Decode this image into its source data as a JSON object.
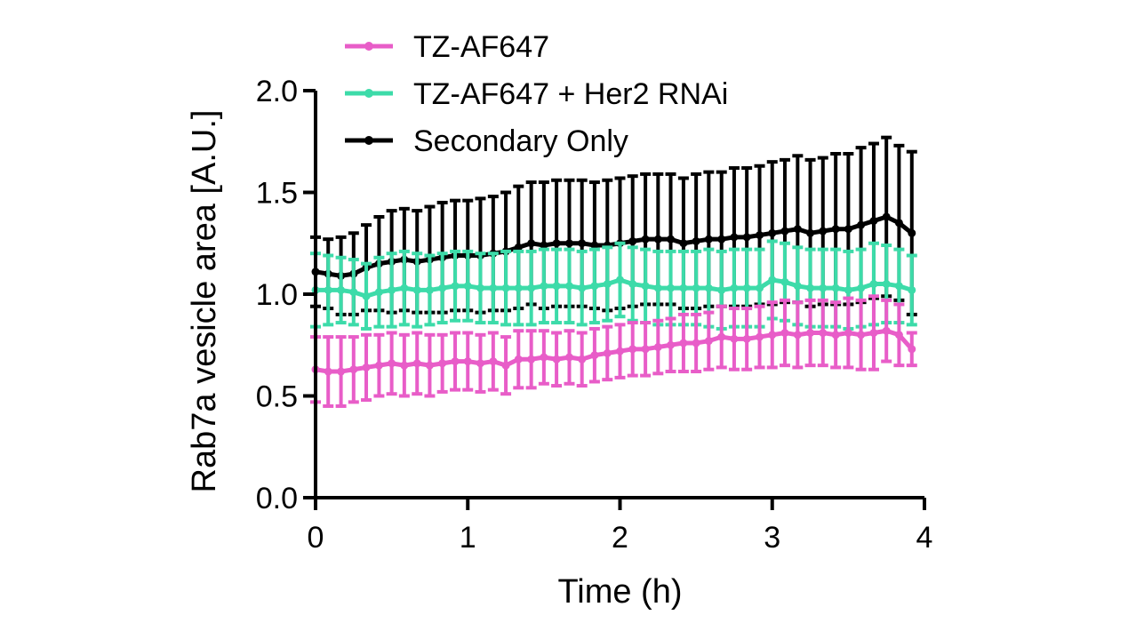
{
  "chart_data": {
    "type": "line",
    "title": "",
    "xlabel": "Time (h)",
    "ylabel": "Rab7a vesicle area [A.U.]",
    "xlim": [
      0,
      4
    ],
    "ylim": [
      0.0,
      2.0
    ],
    "xticks": [
      0,
      1,
      2,
      3,
      4
    ],
    "xtick_labels": [
      "0",
      "1",
      "2",
      "3",
      "4"
    ],
    "yticks": [
      0.0,
      0.5,
      1.0,
      1.5,
      2.0
    ],
    "ytick_labels": [
      "0.0",
      "0.5",
      "1.0",
      "1.5",
      "2.0"
    ],
    "legend_position": "top",
    "x": [
      0,
      0.083,
      0.167,
      0.25,
      0.333,
      0.417,
      0.5,
      0.583,
      0.667,
      0.75,
      0.833,
      0.917,
      1.0,
      1.083,
      1.167,
      1.25,
      1.333,
      1.417,
      1.5,
      1.583,
      1.667,
      1.75,
      1.833,
      1.917,
      2.0,
      2.083,
      2.167,
      2.25,
      2.333,
      2.417,
      2.5,
      2.583,
      2.667,
      2.75,
      2.833,
      2.917,
      3.0,
      3.083,
      3.167,
      3.25,
      3.333,
      3.417,
      3.5,
      3.583,
      3.667,
      3.75,
      3.833,
      3.917
    ],
    "series": [
      {
        "name": "TZ-AF647",
        "color": "#E85DC8",
        "values": [
          0.63,
          0.62,
          0.62,
          0.63,
          0.64,
          0.65,
          0.66,
          0.65,
          0.66,
          0.65,
          0.66,
          0.67,
          0.67,
          0.66,
          0.67,
          0.65,
          0.68,
          0.68,
          0.69,
          0.68,
          0.69,
          0.68,
          0.7,
          0.71,
          0.72,
          0.73,
          0.73,
          0.74,
          0.75,
          0.76,
          0.76,
          0.77,
          0.79,
          0.78,
          0.78,
          0.79,
          0.8,
          0.81,
          0.8,
          0.81,
          0.81,
          0.8,
          0.81,
          0.8,
          0.81,
          0.82,
          0.8,
          0.73
        ],
        "errors": [
          0.16,
          0.17,
          0.17,
          0.16,
          0.16,
          0.15,
          0.15,
          0.15,
          0.15,
          0.15,
          0.14,
          0.14,
          0.14,
          0.14,
          0.14,
          0.14,
          0.14,
          0.14,
          0.13,
          0.13,
          0.13,
          0.13,
          0.13,
          0.13,
          0.13,
          0.13,
          0.13,
          0.13,
          0.13,
          0.14,
          0.14,
          0.14,
          0.15,
          0.15,
          0.15,
          0.15,
          0.16,
          0.16,
          0.16,
          0.16,
          0.16,
          0.16,
          0.17,
          0.17,
          0.18,
          0.15,
          0.15,
          0.08
        ]
      },
      {
        "name": "TZ-AF647 + Her2 RNAi",
        "color": "#3DDBA9",
        "values": [
          1.02,
          1.02,
          1.02,
          1.01,
          0.99,
          1.01,
          1.02,
          1.03,
          1.02,
          1.02,
          1.03,
          1.04,
          1.04,
          1.03,
          1.03,
          1.03,
          1.03,
          1.03,
          1.04,
          1.04,
          1.04,
          1.03,
          1.04,
          1.05,
          1.07,
          1.05,
          1.04,
          1.03,
          1.03,
          1.03,
          1.03,
          1.03,
          1.02,
          1.03,
          1.03,
          1.03,
          1.07,
          1.06,
          1.04,
          1.03,
          1.03,
          1.03,
          1.02,
          1.03,
          1.05,
          1.05,
          1.04,
          1.02
        ],
        "errors": [
          0.18,
          0.17,
          0.16,
          0.16,
          0.16,
          0.17,
          0.18,
          0.18,
          0.18,
          0.17,
          0.17,
          0.17,
          0.17,
          0.17,
          0.17,
          0.18,
          0.18,
          0.18,
          0.18,
          0.18,
          0.18,
          0.18,
          0.18,
          0.18,
          0.18,
          0.18,
          0.18,
          0.18,
          0.18,
          0.18,
          0.18,
          0.19,
          0.19,
          0.19,
          0.19,
          0.19,
          0.19,
          0.19,
          0.19,
          0.19,
          0.19,
          0.19,
          0.19,
          0.19,
          0.2,
          0.19,
          0.18,
          0.17
        ]
      },
      {
        "name": "Secondary Only",
        "color": "#000000",
        "values": [
          1.11,
          1.1,
          1.09,
          1.1,
          1.13,
          1.15,
          1.16,
          1.17,
          1.16,
          1.17,
          1.18,
          1.19,
          1.19,
          1.19,
          1.2,
          1.21,
          1.23,
          1.25,
          1.24,
          1.25,
          1.25,
          1.25,
          1.24,
          1.24,
          1.25,
          1.26,
          1.27,
          1.27,
          1.27,
          1.25,
          1.26,
          1.27,
          1.27,
          1.28,
          1.28,
          1.29,
          1.3,
          1.31,
          1.32,
          1.3,
          1.31,
          1.32,
          1.32,
          1.34,
          1.36,
          1.38,
          1.35,
          1.3
        ],
        "errors": [
          0.17,
          0.17,
          0.19,
          0.2,
          0.21,
          0.23,
          0.25,
          0.25,
          0.25,
          0.26,
          0.27,
          0.27,
          0.27,
          0.28,
          0.28,
          0.29,
          0.3,
          0.3,
          0.31,
          0.31,
          0.31,
          0.31,
          0.31,
          0.32,
          0.32,
          0.32,
          0.32,
          0.32,
          0.32,
          0.32,
          0.33,
          0.33,
          0.33,
          0.34,
          0.34,
          0.34,
          0.35,
          0.35,
          0.36,
          0.36,
          0.36,
          0.37,
          0.37,
          0.38,
          0.38,
          0.39,
          0.38,
          0.4
        ]
      }
    ]
  }
}
